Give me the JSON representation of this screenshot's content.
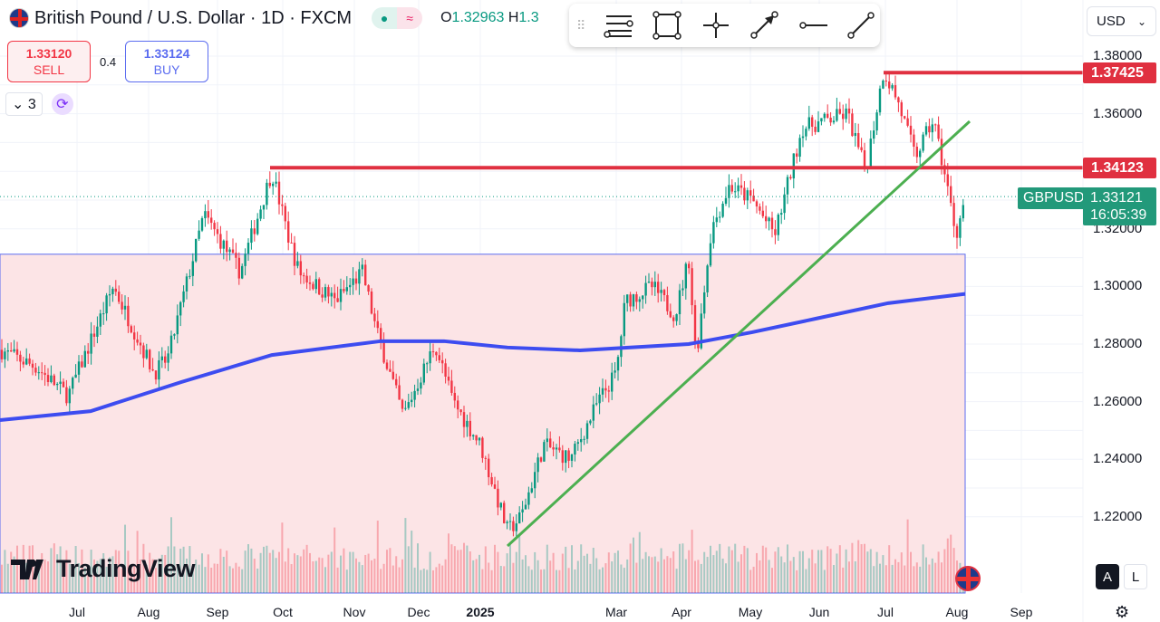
{
  "header": {
    "title": "British Pound / U.S. Dollar · 1D · FXCM",
    "open_label": "O",
    "open_value": "1.32963",
    "high_label": "H",
    "high_value": "1.3",
    "status_wave": "≈"
  },
  "trade": {
    "sell_price": "1.33120",
    "sell_label": "SELL",
    "spread": "0.4",
    "buy_price": "1.33124",
    "buy_label": "BUY"
  },
  "indicators": {
    "count": "3"
  },
  "currency": {
    "selected": "USD"
  },
  "price_axis": {
    "ticks": [
      "1.38000",
      "1.36000",
      "1.32000",
      "1.30000",
      "1.28000",
      "1.26000",
      "1.24000",
      "1.22000"
    ]
  },
  "tags": {
    "resistance_high": "1.37425",
    "resistance_mid": "1.34123",
    "symbol": "GBPUSD",
    "last_price": "1.33121",
    "countdown": "16:05:39"
  },
  "time_axis": {
    "labels": [
      "Jul",
      "Aug",
      "Sep",
      "Oct",
      "Nov",
      "Dec",
      "2025",
      "Mar",
      "Apr",
      "May",
      "Jun",
      "Jul",
      "Aug",
      "Sep"
    ]
  },
  "branding": {
    "name": "TradingView"
  },
  "scale_buttons": {
    "auto": "A",
    "log": "L"
  },
  "colors": {
    "up": "#089981",
    "down": "#f23645",
    "ma": "#3d4cf0",
    "trend": "#4caf50",
    "level": "#e03040",
    "zone": "#fce4e6"
  },
  "chart_data": {
    "type": "candlestick",
    "symbol": "GBPUSD",
    "timeframe": "1D",
    "price_path": [
      [
        0,
        1.278
      ],
      [
        40,
        1.272
      ],
      [
        75,
        1.262
      ],
      [
        125,
        1.3
      ],
      [
        170,
        1.27
      ],
      [
        185,
        1.275
      ],
      [
        225,
        1.325
      ],
      [
        265,
        1.305
      ],
      [
        300,
        1.34
      ],
      [
        320,
        1.315
      ],
      [
        330,
        1.305
      ],
      [
        370,
        1.295
      ],
      [
        400,
        1.305
      ],
      [
        415,
        1.285
      ],
      [
        445,
        1.255
      ],
      [
        480,
        1.28
      ],
      [
        500,
        1.26
      ],
      [
        530,
        1.245
      ],
      [
        560,
        1.215
      ],
      [
        575,
        1.22
      ],
      [
        600,
        1.245
      ],
      [
        630,
        1.24
      ],
      [
        660,
        1.26
      ],
      [
        680,
        1.27
      ],
      [
        690,
        1.295
      ],
      [
        720,
        1.3
      ],
      [
        745,
        1.29
      ],
      [
        760,
        1.31
      ],
      [
        768,
        1.275
      ],
      [
        785,
        1.32
      ],
      [
        805,
        1.335
      ],
      [
        830,
        1.33
      ],
      [
        855,
        1.318
      ],
      [
        885,
        1.355
      ],
      [
        935,
        1.36
      ],
      [
        955,
        1.34
      ],
      [
        975,
        1.375
      ],
      [
        990,
        1.365
      ],
      [
        1010,
        1.345
      ],
      [
        1030,
        1.358
      ],
      [
        1045,
        1.335
      ],
      [
        1055,
        1.318
      ],
      [
        1065,
        1.331
      ]
    ],
    "levels": [
      1.37425,
      1.34123
    ],
    "zone": [
      1.2,
      1.3112
    ],
    "ma_path": [
      [
        0,
        1.2536
      ],
      [
        100,
        1.2567
      ],
      [
        200,
        1.2668
      ],
      [
        300,
        1.2762
      ],
      [
        420,
        1.281
      ],
      [
        490,
        1.281
      ],
      [
        560,
        1.2788
      ],
      [
        640,
        1.2778
      ],
      [
        760,
        1.28
      ],
      [
        830,
        1.2841
      ],
      [
        900,
        1.2888
      ],
      [
        980,
        1.2942
      ],
      [
        1065,
        1.2974
      ]
    ]
  }
}
